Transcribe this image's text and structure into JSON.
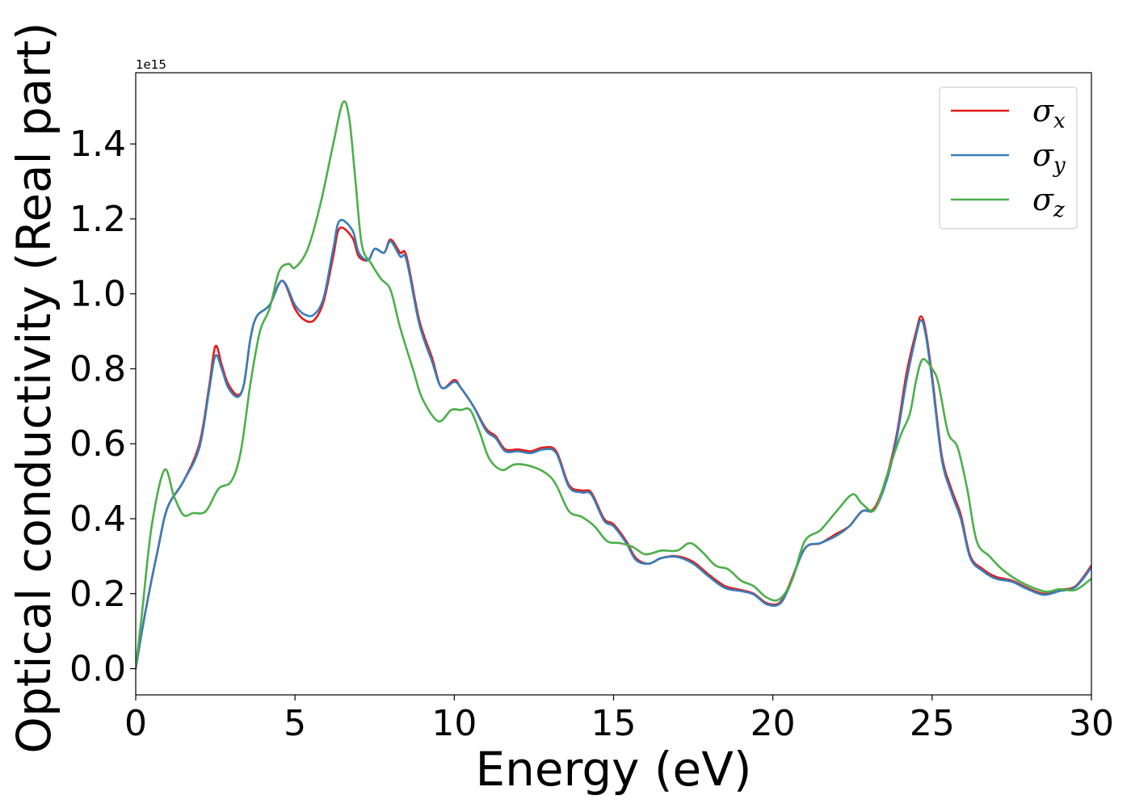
{
  "chart_data": {
    "type": "line",
    "title": "",
    "xlabel": "Energy (eV)",
    "ylabel": "Optical conductivity (Real part)",
    "y_offset_label": "1e15",
    "xlim": [
      0,
      30
    ],
    "ylim": [
      -0.07,
      1.59
    ],
    "x_ticks": [
      0,
      5,
      10,
      15,
      20,
      25,
      30
    ],
    "x_tick_labels": [
      "0",
      "5",
      "10",
      "15",
      "20",
      "25",
      "30"
    ],
    "y_ticks": [
      0.0,
      0.2,
      0.4,
      0.6,
      0.8,
      1.0,
      1.2,
      1.4
    ],
    "y_tick_labels": [
      "0.0",
      "0.2",
      "0.4",
      "0.6",
      "0.8",
      "1.0",
      "1.2",
      "1.4"
    ],
    "grid": false,
    "legend_position": "top-right",
    "series": [
      {
        "name": "σx",
        "symbol": "σ",
        "subscript": "x",
        "color": "#e41a1c",
        "points": [
          [
            0,
            0
          ],
          [
            0.3,
            0.15
          ],
          [
            0.7,
            0.32
          ],
          [
            1.0,
            0.43
          ],
          [
            1.5,
            0.5
          ],
          [
            2.0,
            0.6
          ],
          [
            2.3,
            0.75
          ],
          [
            2.5,
            0.86
          ],
          [
            2.7,
            0.81
          ],
          [
            2.9,
            0.76
          ],
          [
            3.2,
            0.73
          ],
          [
            3.4,
            0.76
          ],
          [
            3.6,
            0.88
          ],
          [
            3.8,
            0.94
          ],
          [
            4.2,
            0.97
          ],
          [
            4.6,
            1.035
          ],
          [
            5.0,
            0.96
          ],
          [
            5.3,
            0.93
          ],
          [
            5.6,
            0.93
          ],
          [
            5.9,
            0.98
          ],
          [
            6.2,
            1.1
          ],
          [
            6.4,
            1.175
          ],
          [
            6.8,
            1.15
          ],
          [
            7.0,
            1.1
          ],
          [
            7.3,
            1.09
          ],
          [
            7.5,
            1.12
          ],
          [
            7.8,
            1.11
          ],
          [
            8.0,
            1.145
          ],
          [
            8.3,
            1.11
          ],
          [
            8.5,
            1.1
          ],
          [
            8.9,
            0.93
          ],
          [
            9.3,
            0.83
          ],
          [
            9.6,
            0.75
          ],
          [
            10.0,
            0.77
          ],
          [
            10.2,
            0.75
          ],
          [
            10.6,
            0.7
          ],
          [
            11.0,
            0.64
          ],
          [
            11.3,
            0.62
          ],
          [
            11.6,
            0.585
          ],
          [
            12.0,
            0.585
          ],
          [
            12.4,
            0.58
          ],
          [
            12.8,
            0.59
          ],
          [
            13.2,
            0.58
          ],
          [
            13.6,
            0.49
          ],
          [
            14.0,
            0.475
          ],
          [
            14.3,
            0.47
          ],
          [
            14.7,
            0.4
          ],
          [
            15.0,
            0.385
          ],
          [
            15.4,
            0.34
          ],
          [
            15.7,
            0.295
          ],
          [
            16.1,
            0.28
          ],
          [
            16.5,
            0.295
          ],
          [
            17.0,
            0.3
          ],
          [
            17.5,
            0.285
          ],
          [
            18.0,
            0.25
          ],
          [
            18.5,
            0.22
          ],
          [
            19.0,
            0.21
          ],
          [
            19.4,
            0.2
          ],
          [
            19.8,
            0.175
          ],
          [
            20.2,
            0.175
          ],
          [
            20.5,
            0.22
          ],
          [
            21.0,
            0.32
          ],
          [
            21.5,
            0.335
          ],
          [
            22.0,
            0.36
          ],
          [
            22.4,
            0.38
          ],
          [
            22.8,
            0.42
          ],
          [
            23.2,
            0.43
          ],
          [
            23.6,
            0.52
          ],
          [
            23.9,
            0.63
          ],
          [
            24.2,
            0.79
          ],
          [
            24.5,
            0.9
          ],
          [
            24.65,
            0.94
          ],
          [
            24.8,
            0.9
          ],
          [
            25.0,
            0.78
          ],
          [
            25.3,
            0.57
          ],
          [
            25.6,
            0.48
          ],
          [
            25.9,
            0.41
          ],
          [
            26.2,
            0.3
          ],
          [
            26.6,
            0.265
          ],
          [
            27.0,
            0.245
          ],
          [
            27.5,
            0.235
          ],
          [
            28.0,
            0.215
          ],
          [
            28.5,
            0.2
          ],
          [
            29.0,
            0.21
          ],
          [
            29.5,
            0.22
          ],
          [
            30.0,
            0.275
          ]
        ]
      },
      {
        "name": "σy",
        "symbol": "σ",
        "subscript": "y",
        "color": "#377eb8",
        "points": [
          [
            0,
            0
          ],
          [
            0.3,
            0.15
          ],
          [
            0.7,
            0.32
          ],
          [
            1.0,
            0.43
          ],
          [
            1.5,
            0.5
          ],
          [
            2.0,
            0.59
          ],
          [
            2.3,
            0.74
          ],
          [
            2.5,
            0.835
          ],
          [
            2.7,
            0.8
          ],
          [
            2.9,
            0.75
          ],
          [
            3.2,
            0.725
          ],
          [
            3.4,
            0.76
          ],
          [
            3.6,
            0.88
          ],
          [
            3.8,
            0.94
          ],
          [
            4.2,
            0.97
          ],
          [
            4.6,
            1.035
          ],
          [
            5.0,
            0.97
          ],
          [
            5.3,
            0.945
          ],
          [
            5.6,
            0.945
          ],
          [
            5.9,
            0.99
          ],
          [
            6.2,
            1.12
          ],
          [
            6.4,
            1.195
          ],
          [
            6.8,
            1.17
          ],
          [
            7.0,
            1.11
          ],
          [
            7.3,
            1.09
          ],
          [
            7.5,
            1.12
          ],
          [
            7.8,
            1.11
          ],
          [
            8.0,
            1.14
          ],
          [
            8.3,
            1.1
          ],
          [
            8.5,
            1.09
          ],
          [
            8.9,
            0.92
          ],
          [
            9.3,
            0.82
          ],
          [
            9.6,
            0.75
          ],
          [
            10.0,
            0.765
          ],
          [
            10.2,
            0.75
          ],
          [
            10.6,
            0.7
          ],
          [
            11.0,
            0.635
          ],
          [
            11.3,
            0.615
          ],
          [
            11.6,
            0.58
          ],
          [
            12.0,
            0.58
          ],
          [
            12.4,
            0.575
          ],
          [
            12.8,
            0.585
          ],
          [
            13.2,
            0.575
          ],
          [
            13.6,
            0.485
          ],
          [
            14.0,
            0.47
          ],
          [
            14.3,
            0.465
          ],
          [
            14.7,
            0.395
          ],
          [
            15.0,
            0.38
          ],
          [
            15.4,
            0.335
          ],
          [
            15.7,
            0.29
          ],
          [
            16.1,
            0.28
          ],
          [
            16.5,
            0.295
          ],
          [
            17.0,
            0.298
          ],
          [
            17.5,
            0.28
          ],
          [
            18.0,
            0.245
          ],
          [
            18.5,
            0.215
          ],
          [
            19.0,
            0.207
          ],
          [
            19.4,
            0.198
          ],
          [
            19.8,
            0.172
          ],
          [
            20.2,
            0.172
          ],
          [
            20.5,
            0.215
          ],
          [
            21.0,
            0.32
          ],
          [
            21.5,
            0.335
          ],
          [
            22.0,
            0.355
          ],
          [
            22.4,
            0.38
          ],
          [
            22.8,
            0.42
          ],
          [
            23.2,
            0.425
          ],
          [
            23.6,
            0.51
          ],
          [
            23.9,
            0.62
          ],
          [
            24.2,
            0.77
          ],
          [
            24.5,
            0.89
          ],
          [
            24.65,
            0.93
          ],
          [
            24.8,
            0.89
          ],
          [
            25.0,
            0.77
          ],
          [
            25.3,
            0.56
          ],
          [
            25.6,
            0.47
          ],
          [
            25.9,
            0.4
          ],
          [
            26.2,
            0.295
          ],
          [
            26.6,
            0.26
          ],
          [
            27.0,
            0.24
          ],
          [
            27.5,
            0.232
          ],
          [
            28.0,
            0.212
          ],
          [
            28.5,
            0.197
          ],
          [
            29.0,
            0.207
          ],
          [
            29.5,
            0.218
          ],
          [
            30.0,
            0.27
          ]
        ]
      },
      {
        "name": "σz",
        "symbol": "σ",
        "subscript": "z",
        "color": "#4daf4a",
        "points": [
          [
            0,
            0
          ],
          [
            0.2,
            0.15
          ],
          [
            0.5,
            0.38
          ],
          [
            0.9,
            0.53
          ],
          [
            1.2,
            0.46
          ],
          [
            1.5,
            0.41
          ],
          [
            1.8,
            0.415
          ],
          [
            2.2,
            0.42
          ],
          [
            2.6,
            0.48
          ],
          [
            3.0,
            0.5
          ],
          [
            3.3,
            0.58
          ],
          [
            3.6,
            0.76
          ],
          [
            3.9,
            0.9
          ],
          [
            4.2,
            0.96
          ],
          [
            4.5,
            1.06
          ],
          [
            4.8,
            1.08
          ],
          [
            5.0,
            1.07
          ],
          [
            5.4,
            1.12
          ],
          [
            5.8,
            1.24
          ],
          [
            6.2,
            1.4
          ],
          [
            6.5,
            1.51
          ],
          [
            6.7,
            1.47
          ],
          [
            6.9,
            1.3
          ],
          [
            7.1,
            1.13
          ],
          [
            7.4,
            1.08
          ],
          [
            7.7,
            1.04
          ],
          [
            8.0,
            1.01
          ],
          [
            8.3,
            0.91
          ],
          [
            8.7,
            0.8
          ],
          [
            9.0,
            0.72
          ],
          [
            9.5,
            0.66
          ],
          [
            9.9,
            0.69
          ],
          [
            10.2,
            0.69
          ],
          [
            10.5,
            0.69
          ],
          [
            10.8,
            0.63
          ],
          [
            11.1,
            0.56
          ],
          [
            11.5,
            0.53
          ],
          [
            11.9,
            0.545
          ],
          [
            12.4,
            0.54
          ],
          [
            12.9,
            0.52
          ],
          [
            13.2,
            0.49
          ],
          [
            13.6,
            0.42
          ],
          [
            14.0,
            0.405
          ],
          [
            14.4,
            0.38
          ],
          [
            14.8,
            0.34
          ],
          [
            15.2,
            0.335
          ],
          [
            15.6,
            0.325
          ],
          [
            16.0,
            0.305
          ],
          [
            16.5,
            0.315
          ],
          [
            17.0,
            0.315
          ],
          [
            17.4,
            0.335
          ],
          [
            17.8,
            0.31
          ],
          [
            18.2,
            0.275
          ],
          [
            18.6,
            0.265
          ],
          [
            19.0,
            0.235
          ],
          [
            19.4,
            0.22
          ],
          [
            19.8,
            0.19
          ],
          [
            20.2,
            0.185
          ],
          [
            20.6,
            0.235
          ],
          [
            21.0,
            0.34
          ],
          [
            21.5,
            0.37
          ],
          [
            22.0,
            0.42
          ],
          [
            22.5,
            0.465
          ],
          [
            22.8,
            0.44
          ],
          [
            23.2,
            0.425
          ],
          [
            23.6,
            0.52
          ],
          [
            24.0,
            0.62
          ],
          [
            24.3,
            0.68
          ],
          [
            24.5,
            0.77
          ],
          [
            24.7,
            0.825
          ],
          [
            25.0,
            0.8
          ],
          [
            25.2,
            0.76
          ],
          [
            25.5,
            0.63
          ],
          [
            25.8,
            0.59
          ],
          [
            26.1,
            0.48
          ],
          [
            26.4,
            0.34
          ],
          [
            26.8,
            0.3
          ],
          [
            27.2,
            0.265
          ],
          [
            27.7,
            0.235
          ],
          [
            28.2,
            0.215
          ],
          [
            28.6,
            0.205
          ],
          [
            29.0,
            0.212
          ],
          [
            29.5,
            0.21
          ],
          [
            30.0,
            0.24
          ]
        ]
      }
    ]
  }
}
